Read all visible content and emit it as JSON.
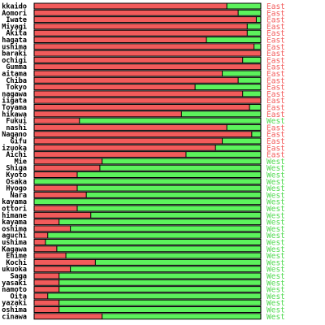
{
  "chart_data": {
    "type": "bar",
    "orientation": "horizontal",
    "stacked": true,
    "normalized": true,
    "colors": {
      "east": "#f25b5b",
      "west": "#5cf25c",
      "east_text": "#f25b5b",
      "west_text": "#4fd94f",
      "border": "#000000"
    },
    "categories": [
      "Hokkaido",
      "Aomori",
      "Iwate",
      "Miyagi",
      "Akita",
      "Yamagata",
      "Fukushima",
      "Ibaraki",
      "Tochigi",
      "Gumma",
      "Saitama",
      "Chiba",
      "Tokyo",
      "Kanagawa",
      "Niigata",
      "Toyama",
      "Ishikawa",
      "Fukui",
      "Yamanashi",
      "Nagano",
      "Gifu",
      "Shizuoka",
      "Aichi",
      "Mie",
      "Shiga",
      "Kyoto",
      "Osaka",
      "Hyogo",
      "Nara",
      "Wakayama",
      "Tottori",
      "Shimane",
      "Okayama",
      "Hiroshima",
      "Yamaguchi",
      "Tokushima",
      "Kagawa",
      "Ehime",
      "Kochi",
      "Fukuoka",
      "Saga",
      "Nagasaki",
      "Kumamoto",
      "Oita",
      "Miyazaki",
      "Kagoshima",
      "Okinawa"
    ],
    "display_labels": [
      "kkaido",
      "Aomori",
      "Iwate",
      "Miyagi",
      "Akita",
      "hagata",
      "ushima",
      "baraki",
      "ochigi",
      "Gumma",
      "aitama",
      "Chiba",
      "Tokyo",
      "nagawa",
      "iigata",
      "Toyama",
      "hikawa",
      "Fukui",
      "nashi",
      "Nagano",
      "Gifu",
      "izuoka",
      "Aichi",
      "Mie",
      "Shiga",
      "Kyoto",
      "Osaka",
      "Hyogo",
      "Nara",
      "kayama",
      "ottori",
      "himane",
      "kayama",
      "oshima",
      "aguchi",
      "ushima",
      "Kagawa",
      "Ehime",
      "Kochi",
      "ukuoka",
      "Saga",
      "yasaki",
      "namoto",
      "Oita",
      "yazaki",
      "oshima",
      "cinawa"
    ],
    "series": [
      {
        "name": "East",
        "values": [
          0.85,
          0.9,
          0.98,
          0.94,
          0.94,
          0.76,
          0.97,
          1.0,
          0.92,
          1.0,
          0.83,
          0.9,
          0.71,
          0.92,
          1.0,
          0.95,
          0.65,
          0.2,
          0.85,
          0.96,
          0.83,
          0.8,
          0.67,
          0.3,
          0.29,
          0.19,
          0.0,
          0.19,
          0.23,
          0.0,
          0.19,
          0.25,
          0.11,
          0.16,
          0.06,
          0.05,
          0.1,
          0.14,
          0.27,
          0.16,
          0.11,
          0.11,
          0.11,
          0.06,
          0.11,
          0.11,
          0.3
        ]
      },
      {
        "name": "West",
        "values": [
          0.15,
          0.1,
          0.02,
          0.06,
          0.06,
          0.24,
          0.03,
          0.0,
          0.08,
          0.0,
          0.17,
          0.1,
          0.29,
          0.08,
          0.0,
          0.05,
          0.35,
          0.8,
          0.15,
          0.04,
          0.17,
          0.2,
          0.33,
          0.7,
          0.71,
          0.81,
          1.0,
          0.81,
          0.77,
          1.0,
          0.81,
          0.75,
          0.89,
          0.84,
          0.94,
          0.95,
          0.9,
          0.86,
          0.73,
          0.84,
          0.89,
          0.89,
          0.89,
          0.94,
          0.89,
          0.89,
          0.7
        ]
      }
    ],
    "region_labels": [
      "East",
      "East",
      "East",
      "East",
      "East",
      "East",
      "East",
      "East",
      "East",
      "East",
      "East",
      "East",
      "East",
      "East",
      "East",
      "East",
      "East",
      "West",
      "East",
      "East",
      "East",
      "East",
      "East",
      "West",
      "West",
      "West",
      "West",
      "West",
      "West",
      "West",
      "West",
      "West",
      "West",
      "West",
      "West",
      "West",
      "West",
      "West",
      "West",
      "West",
      "West",
      "West",
      "West",
      "West",
      "West",
      "West",
      "West"
    ],
    "xlim": [
      0,
      1
    ]
  }
}
